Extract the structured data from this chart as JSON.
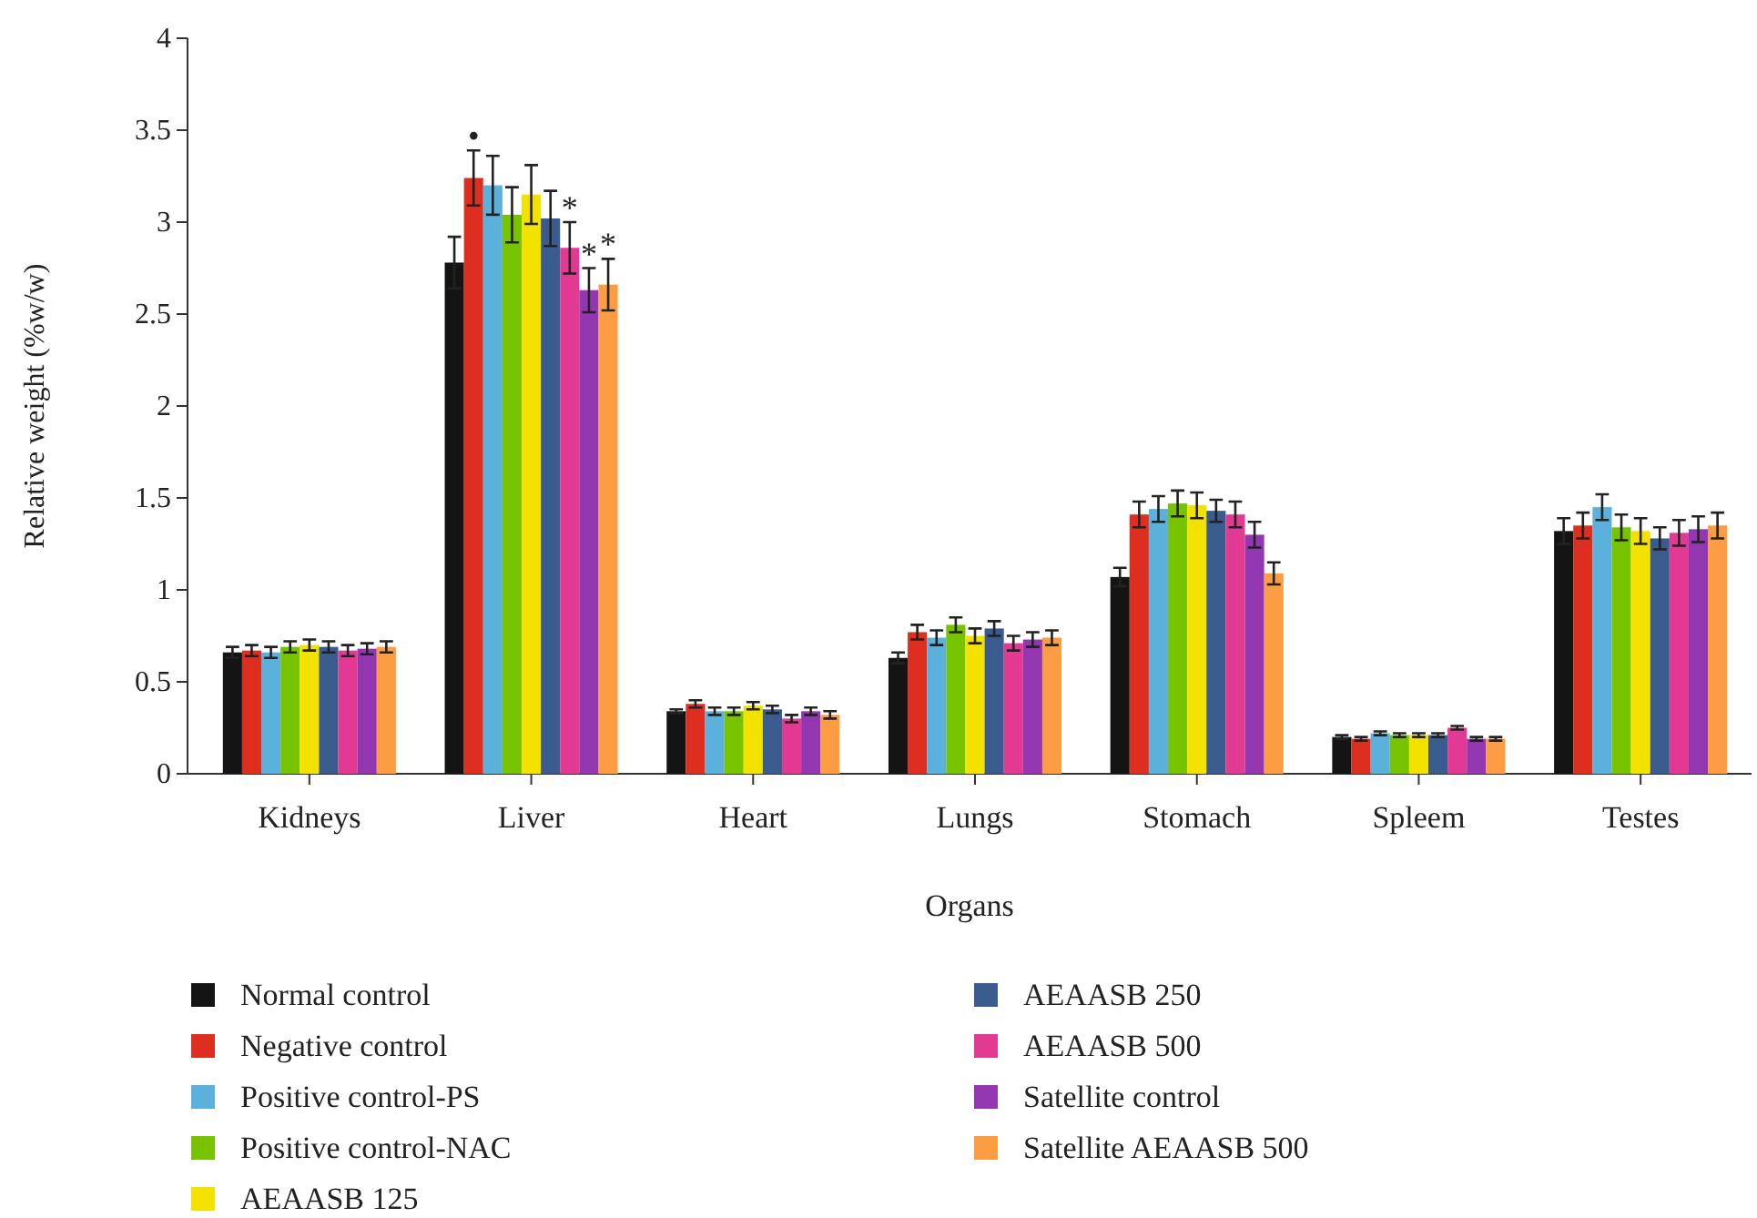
{
  "chart_data": {
    "type": "bar",
    "xlabel": "Organs",
    "ylabel": "Relative weight (%w/w)",
    "categories": [
      "Kidneys",
      "Liver",
      "Heart",
      "Lungs",
      "Stomach",
      "Spleem",
      "Testes"
    ],
    "ylim": [
      0,
      4
    ],
    "yticks": [
      0,
      0.5,
      1,
      1.5,
      2,
      2.5,
      3,
      3.5,
      4
    ],
    "legend": "bottom",
    "series": [
      {
        "name": "Normal control",
        "color": "#141414",
        "values": [
          0.66,
          2.78,
          0.34,
          0.63,
          1.07,
          0.2,
          1.32
        ],
        "errors": [
          0.03,
          0.14,
          0.01,
          0.03,
          0.05,
          0.01,
          0.07
        ]
      },
      {
        "name": "Negative control",
        "color": "#dd2e1f",
        "values": [
          0.67,
          3.24,
          0.38,
          0.77,
          1.41,
          0.19,
          1.35
        ],
        "errors": [
          0.03,
          0.15,
          0.02,
          0.04,
          0.07,
          0.01,
          0.07
        ],
        "value_labels": [
          null,
          "•",
          null,
          null,
          null,
          null,
          null
        ]
      },
      {
        "name": "Positive control-PS",
        "color": "#5cb0dc",
        "values": [
          0.66,
          3.2,
          0.34,
          0.74,
          1.44,
          0.22,
          1.45
        ],
        "errors": [
          0.03,
          0.16,
          0.02,
          0.04,
          0.07,
          0.01,
          0.07
        ]
      },
      {
        "name": "Positive control-NAC",
        "color": "#77c300",
        "values": [
          0.69,
          3.04,
          0.34,
          0.81,
          1.47,
          0.21,
          1.34
        ],
        "errors": [
          0.03,
          0.15,
          0.02,
          0.04,
          0.07,
          0.01,
          0.07
        ]
      },
      {
        "name": "AEAASB 125",
        "color": "#f3e200",
        "values": [
          0.7,
          3.15,
          0.37,
          0.75,
          1.46,
          0.21,
          1.32
        ],
        "errors": [
          0.03,
          0.16,
          0.02,
          0.04,
          0.07,
          0.01,
          0.07
        ]
      },
      {
        "name": "AEAASB 250",
        "color": "#3a5b8e",
        "values": [
          0.69,
          3.02,
          0.35,
          0.79,
          1.43,
          0.21,
          1.28
        ],
        "errors": [
          0.03,
          0.15,
          0.02,
          0.04,
          0.06,
          0.01,
          0.06
        ]
      },
      {
        "name": "AEAASB 500",
        "color": "#e23a92",
        "values": [
          0.67,
          2.86,
          0.3,
          0.71,
          1.41,
          0.25,
          1.31
        ],
        "errors": [
          0.03,
          0.14,
          0.02,
          0.04,
          0.07,
          0.01,
          0.07
        ],
        "value_labels": [
          null,
          "*",
          null,
          null,
          null,
          null,
          null
        ]
      },
      {
        "name": "Satellite control",
        "color": "#9237b0",
        "values": [
          0.68,
          2.63,
          0.34,
          0.73,
          1.3,
          0.19,
          1.33
        ],
        "errors": [
          0.03,
          0.12,
          0.02,
          0.04,
          0.07,
          0.01,
          0.07
        ],
        "value_labels": [
          null,
          "*",
          null,
          null,
          null,
          null,
          null
        ]
      },
      {
        "name": "Satellite AEAASB 500",
        "color": "#fc9c43",
        "values": [
          0.69,
          2.66,
          0.32,
          0.74,
          1.09,
          0.19,
          1.35
        ],
        "errors": [
          0.03,
          0.14,
          0.02,
          0.04,
          0.06,
          0.01,
          0.07
        ],
        "value_labels": [
          null,
          "*",
          null,
          null,
          null,
          null,
          null
        ]
      }
    ]
  }
}
